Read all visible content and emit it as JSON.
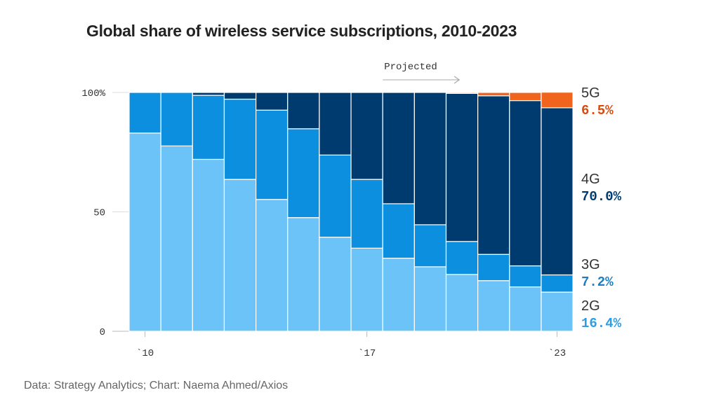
{
  "chart_data": {
    "type": "bar",
    "stacked": true,
    "title": "Global share of wireless service subscriptions, 2010-2023",
    "source": "Data: Strategy Analytics; Chart: Naema Ahmed/Axios",
    "projected_label": "Projected",
    "projected_from_index": 8,
    "categories": [
      "2010",
      "2011",
      "2012",
      "2013",
      "2014",
      "2015",
      "2016",
      "2017",
      "2018",
      "2019",
      "2020",
      "2021",
      "2022",
      "2023"
    ],
    "x_tick_labels": [
      {
        "index": 0,
        "label": "`10"
      },
      {
        "index": 7,
        "label": "`17"
      },
      {
        "index": 13,
        "label": "`23"
      }
    ],
    "ylim": [
      0,
      100
    ],
    "y_ticks": [
      {
        "value": 0,
        "label": "0"
      },
      {
        "value": 50,
        "label": "50"
      },
      {
        "value": 100,
        "label": "100%"
      }
    ],
    "series": [
      {
        "name": "2G",
        "color": "#6cc3f7",
        "values": [
          83.0,
          77.6,
          72.0,
          63.6,
          55.2,
          47.6,
          39.4,
          34.8,
          30.6,
          27.0,
          23.8,
          21.2,
          18.6,
          16.4
        ]
      },
      {
        "name": "3G",
        "color": "#0b8fde",
        "values": [
          17.0,
          22.4,
          26.8,
          33.6,
          37.4,
          37.2,
          34.4,
          28.8,
          22.8,
          17.6,
          13.8,
          11.0,
          8.8,
          7.2
        ]
      },
      {
        "name": "4G",
        "color": "#003b6f",
        "values": [
          0.0,
          0.0,
          1.2,
          2.8,
          7.4,
          15.2,
          26.2,
          36.4,
          46.6,
          55.4,
          62.0,
          66.4,
          69.2,
          70.0
        ]
      },
      {
        "name": "5G",
        "color": "#f0641e",
        "values": [
          0.0,
          0.0,
          0.0,
          0.0,
          0.0,
          0.0,
          0.0,
          0.0,
          0.0,
          0.0,
          0.4,
          1.4,
          3.4,
          6.5
        ]
      }
    ],
    "legend": [
      {
        "name": "5G",
        "value_label": "6.5%",
        "color": "#d84a0e"
      },
      {
        "name": "4G",
        "value_label": "70.0%",
        "color": "#003b6f"
      },
      {
        "name": "3G",
        "value_label": "7.2%",
        "color": "#1a7fc4"
      },
      {
        "name": "2G",
        "value_label": "16.4%",
        "color": "#2c9ee6"
      }
    ]
  }
}
